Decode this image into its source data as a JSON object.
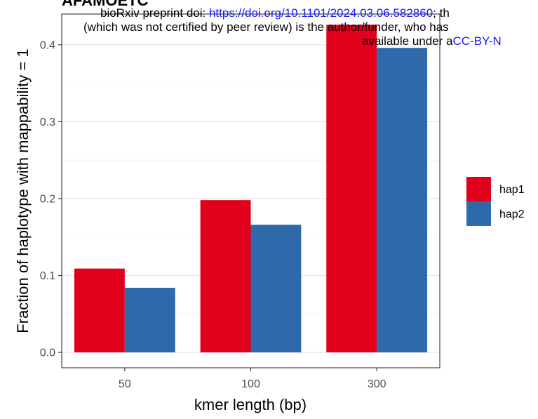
{
  "preprint": {
    "title_fragment": "AFAMOETC",
    "line1_text": "bioRxiv preprint doi: ",
    "line1_link": "https://doi.org/10.1101/2024.03.06.582860",
    "line1_tail": "; th",
    "line2_text": "(which was not certified by peer review) is the author/funder, who has",
    "line3_text": "available under a",
    "line3_link": "CC-BY-N"
  },
  "chart_data": {
    "type": "bar",
    "categories": [
      "50",
      "100",
      "300"
    ],
    "series": [
      {
        "name": "hap1",
        "color": "#e0001b",
        "values": [
          0.109,
          0.198,
          0.426
        ]
      },
      {
        "name": "hap2",
        "color": "#2e6aa9",
        "values": [
          0.084,
          0.166,
          0.396
        ]
      }
    ],
    "xlabel": "kmer length (bp)",
    "ylabel": "Fraction of haplotype with mappability = 1",
    "ylim": [
      -0.02,
      0.44
    ],
    "yticks": [
      0.0,
      0.1,
      0.2,
      0.3,
      0.4
    ],
    "ytick_labels": [
      "0.0",
      "0.1",
      "0.2",
      "0.3",
      "0.4"
    ],
    "grid": true,
    "legend_position": "right"
  }
}
